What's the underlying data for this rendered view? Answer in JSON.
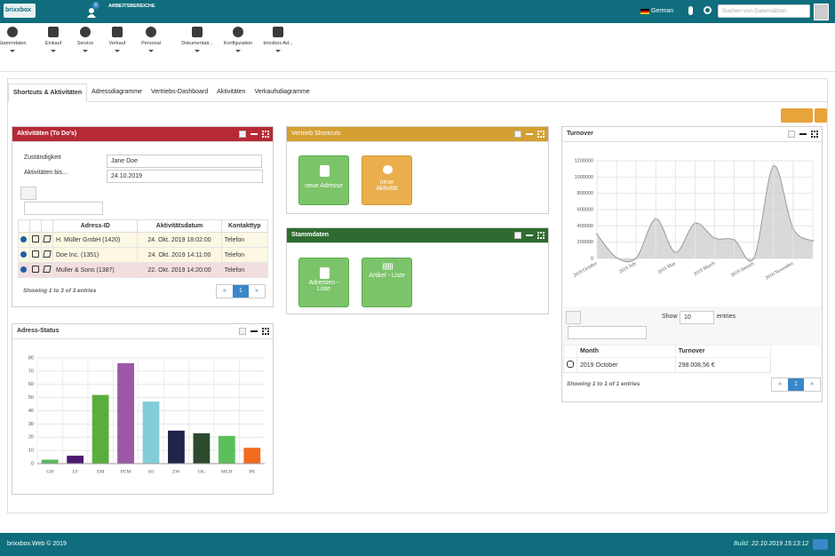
{
  "header": {
    "logo": "brixxbox",
    "badge": "0",
    "workspace": "ARBEITSBEREICHE",
    "language": "German",
    "search_placeholder": "Suchen von Datensätzen"
  },
  "toolbar": [
    "Stammdaten",
    "Einkauf",
    "Service",
    "Verkauf",
    "Personal",
    "Dokumentati...",
    "Konfiguration",
    "brixxbox Ad..."
  ],
  "tabs": [
    "Shortcuts & Aktivitäten",
    "Adressdiagramme",
    "Vertriebs-Dashboard",
    "Aktivitäten",
    "Verkaufsdiagramme"
  ],
  "activities": {
    "title": "Aktivitäten (To Do's)",
    "responsible_label": "Zuständigkeit",
    "responsible_value": "Jane Doe",
    "until_label": "Aktivitäten bis...",
    "until_value": "24.10.2019",
    "columns": [
      "Adress-ID",
      "Aktivitätsdatum",
      "Kontakttyp"
    ],
    "rows": [
      [
        "H. Müller GmbH (1420)",
        "24. Okt. 2019 18:02:00",
        "Telefon"
      ],
      [
        "Doe Inc. (1351)",
        "24. Okt. 2019 14:11:00",
        "Telefon"
      ],
      [
        "Muller & Sons (1387)",
        "22. Okt. 2019 14:20:00",
        "Telefon"
      ]
    ],
    "info": "Showing 1 to 3 of 3 entries",
    "page": "1"
  },
  "shortcuts": {
    "title": "Vertrieb Shortcuts",
    "buttons": [
      "neue Adresse",
      "neue Aktivität"
    ]
  },
  "master_data": {
    "title": "Stammdaten",
    "buttons": [
      "Adressen - Liste",
      "Artikel - Liste"
    ]
  },
  "turnover_table": {
    "show_label": "Show",
    "page_size": "10",
    "entries_label": "entries",
    "columns": [
      "Month",
      "Turnover"
    ],
    "rows": [
      [
        "2019 October",
        "298.008,56 €"
      ]
    ],
    "info": "Showing 1 to 1 of 1 entries",
    "page": "1"
  },
  "footer": {
    "copyright": "brixxbox.Web © 2019",
    "build_label": "Build:",
    "build_value": "22.10.2019 15:13:12"
  },
  "chart_data": [
    {
      "type": "bar",
      "title": "Adress-Status",
      "categories": [
        "GH",
        "LF",
        "EM",
        "PCM",
        "SO",
        "ZW",
        "OG",
        "MGH",
        "PK"
      ],
      "values": [
        3,
        6,
        52,
        76,
        47,
        25,
        23,
        21,
        12
      ],
      "colors": [
        "#5cb85c",
        "#4b1a6e",
        "#5aae3c",
        "#9b59a6",
        "#82cdd8",
        "#22234a",
        "#2e4a2e",
        "#5cbf5c",
        "#f26b1d"
      ],
      "ylim": [
        0,
        80
      ],
      "yticks": [
        0,
        10,
        20,
        30,
        40,
        50,
        60,
        70,
        80
      ],
      "grid": true
    },
    {
      "type": "area",
      "title": "Turnover",
      "categories": [
        "2019 October",
        null,
        "2019 July",
        null,
        "2019 May",
        null,
        "2019 March",
        null,
        "2019 January",
        null,
        "2018 November",
        null
      ],
      "values": [
        298008.56,
        10000,
        5000,
        486000,
        75000,
        432000,
        250000,
        227000,
        5000,
        1135000,
        367000,
        216000
      ],
      "color": "#d0d0d0",
      "line_color": "#9a9a9a",
      "ylim": [
        0,
        1200000
      ],
      "yticks": [
        0,
        200000,
        400000,
        600000,
        800000,
        1000000,
        1200000
      ],
      "grid": true
    }
  ]
}
